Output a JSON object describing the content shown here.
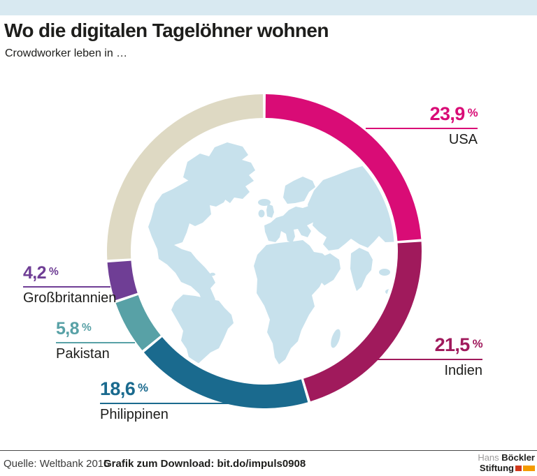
{
  "page": {
    "background": "#ffffff",
    "topbar_color": "#d8e9f1"
  },
  "header": {
    "title": "Wo die digitalen Tagelöhner wohnen",
    "subtitle": "Crowdworker leben in …"
  },
  "chart_data": {
    "type": "pie",
    "variant": "donut",
    "title": "Crowdworker leben in …",
    "unit": "%",
    "direction": "clockwise",
    "start_angle_deg": 0,
    "inner_radius_ratio": 0.85,
    "center_graphic": "world-map",
    "map_color": "#c7e1ec",
    "slices": [
      {
        "label": "USA",
        "value": 23.9,
        "display": "23,9",
        "color": "#d90c76",
        "labeled": true
      },
      {
        "label": "Indien",
        "value": 21.5,
        "display": "21,5",
        "color": "#a01a5c",
        "labeled": true
      },
      {
        "label": "Philippinen",
        "value": 18.6,
        "display": "18,6",
        "color": "#1a6a8e",
        "labeled": true
      },
      {
        "label": "Pakistan",
        "value": 5.8,
        "display": "5,8",
        "color": "#58a1a6",
        "labeled": true
      },
      {
        "label": "Großbritannien",
        "value": 4.2,
        "display": "4,2",
        "color": "#6f3e95",
        "labeled": true
      },
      {
        "label": "",
        "value": 26.0,
        "display": "",
        "color": "#ded9c3",
        "labeled": false
      }
    ]
  },
  "footer": {
    "source": "Quelle: Weltbank 2015",
    "download": "Grafik zum Download: bit.do/impuls0908",
    "logo": {
      "word1": "Hans",
      "word2": "Böckler",
      "word3": "Stiftung",
      "red": "#d2381c",
      "orange": "#f49b00"
    }
  }
}
